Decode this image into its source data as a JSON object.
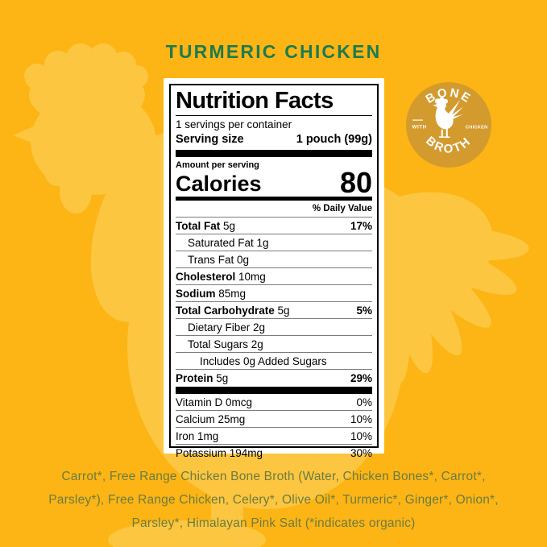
{
  "page": {
    "title": "TURMERIC CHICKEN"
  },
  "colors": {
    "bg": "#FCB515",
    "silhouette": "#FCC640",
    "badge": "#D39A2E",
    "green": "#1E7A4E",
    "olive": "#6D7B3F"
  },
  "badge": {
    "arc_top": "BONE",
    "arc_bottom": "BROTH",
    "left_word": "WITH",
    "right_word": "CHICKEN",
    "icon": "rooster-icon"
  },
  "nutrition": {
    "title": "Nutrition Facts",
    "servings_per_container": "1 servings per container",
    "serving_size_label": "Serving size",
    "serving_size_value": "1 pouch (99g)",
    "amount_per_serving": "Amount per serving",
    "calories_label": "Calories",
    "calories_value": "80",
    "daily_value_header": "% Daily Value",
    "rows": [
      {
        "name": "Total Fat",
        "amount": "5g",
        "dv": "17%",
        "bold": true,
        "dv_bold": true,
        "indent": 0
      },
      {
        "name": "Saturated Fat",
        "amount": "1g",
        "dv": "",
        "bold": false,
        "dv_bold": false,
        "indent": 1
      },
      {
        "name": "Trans Fat",
        "amount": "0g",
        "dv": "",
        "bold": false,
        "dv_bold": false,
        "indent": 1
      },
      {
        "name": "Cholesterol",
        "amount": "10mg",
        "dv": "",
        "bold": true,
        "dv_bold": false,
        "indent": 0
      },
      {
        "name": "Sodium",
        "amount": "85mg",
        "dv": "",
        "bold": true,
        "dv_bold": false,
        "indent": 0
      },
      {
        "name": "Total Carbohydrate",
        "amount": "5g",
        "dv": "5%",
        "bold": true,
        "dv_bold": true,
        "indent": 0
      },
      {
        "name": "Dietary Fiber",
        "amount": "2g",
        "dv": "",
        "bold": false,
        "dv_bold": false,
        "indent": 1
      },
      {
        "name": "Total Sugars",
        "amount": "2g",
        "dv": "",
        "bold": false,
        "dv_bold": false,
        "indent": 1
      },
      {
        "name": "Includes 0g Added Sugars",
        "amount": "",
        "dv": "",
        "bold": false,
        "dv_bold": false,
        "indent": 2
      },
      {
        "name": "Protein",
        "amount": "5g",
        "dv": "29%",
        "bold": true,
        "dv_bold": true,
        "indent": 0
      }
    ],
    "micronutrients": [
      {
        "name": "Vitamin D",
        "amount": "0mcg",
        "dv": "0%"
      },
      {
        "name": "Calcium",
        "amount": "25mg",
        "dv": "10%"
      },
      {
        "name": "Iron",
        "amount": "1mg",
        "dv": "10%"
      },
      {
        "name": "Potassium",
        "amount": "194mg",
        "dv": "30%"
      }
    ]
  },
  "ingredients": "Carrot*, Free Range Chicken Bone Broth (Water, Chicken Bones*, Carrot*, Parsley*), Free Range Chicken, Celery*, Olive Oil*, Turmeric*, Ginger*, Onion*, Parsley*, Himalayan Pink Salt (*indicates organic)"
}
